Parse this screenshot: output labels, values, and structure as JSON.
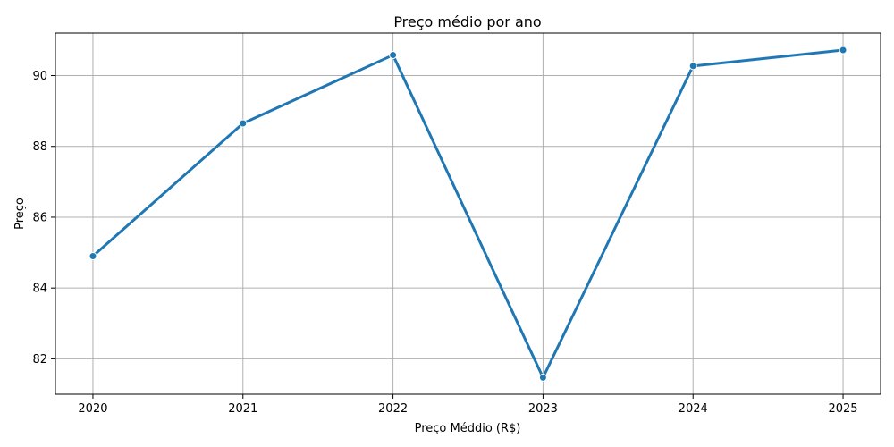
{
  "chart_data": {
    "type": "line",
    "title": "Preço médio por ano",
    "xlabel": "Preço Méddio (R$)",
    "ylabel": "Preço",
    "x": [
      2020,
      2021,
      2022,
      2023,
      2024,
      2025
    ],
    "x_tick_labels": [
      "2020",
      "2021",
      "2022",
      "2023",
      "2024",
      "2025"
    ],
    "series": [
      {
        "values": [
          84.9,
          88.65,
          90.58,
          81.47,
          90.27,
          90.72
        ],
        "color": "#1f77b4"
      }
    ],
    "xlim": [
      2019.75,
      2025.25
    ],
    "ylim": [
      81.0,
      91.2
    ],
    "y_ticks": [
      82,
      84,
      86,
      88,
      90
    ],
    "y_tick_labels": [
      "82",
      "84",
      "86",
      "88",
      "90"
    ],
    "grid": true,
    "marker": "circle"
  }
}
